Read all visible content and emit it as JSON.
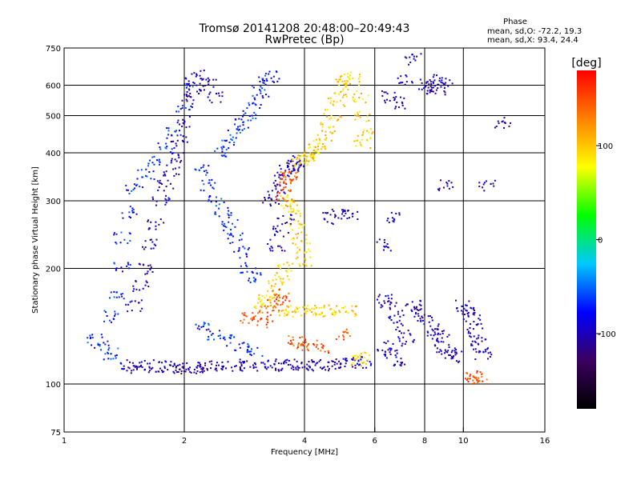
{
  "chart_data": {
    "type": "scatter",
    "title": "Tromsø 20141208 20:48:00–20:49:43",
    "subtitle": "RwPretec (Bp)",
    "xlabel": "Frequency [MHz]",
    "ylabel": "Stationary phase Virtual Height [km]",
    "x_scale": "log",
    "y_scale": "log",
    "xlim": [
      1,
      16
    ],
    "ylim": [
      75,
      750
    ],
    "x_ticks": [
      1,
      2,
      4,
      6,
      8,
      10,
      16
    ],
    "y_ticks": [
      75,
      100,
      200,
      300,
      400,
      500,
      600,
      750
    ],
    "x_gridlines": [
      2,
      4,
      6,
      8,
      10
    ],
    "y_gridlines": [
      100,
      200,
      300,
      400,
      500,
      600
    ],
    "grid": true,
    "stats": {
      "heading": "Phase",
      "line_O": "mean, sd,O: -72.2, 19.3",
      "line_X": "mean, sd,X:  93.4, 24.4"
    },
    "colorbar": {
      "label": "[deg]",
      "range": [
        -180,
        180
      ],
      "ticks": [
        100,
        0,
        -100
      ],
      "colormap": "rainbow",
      "colors": [
        "#000000",
        "#3c0060",
        "#0000ff",
        "#00c8ff",
        "#00ff00",
        "#ffff00",
        "#ff8000",
        "#ff0000"
      ]
    },
    "series": [
      {
        "trace": "F-region O-mode trace (blue)",
        "phase_deg": -100,
        "points": [
          [
            1.45,
            110
          ],
          [
            1.5,
            112
          ],
          [
            1.6,
            112
          ],
          [
            1.7,
            111
          ],
          [
            1.8,
            111
          ],
          [
            1.9,
            110
          ],
          [
            2.0,
            110
          ],
          [
            2.1,
            110
          ],
          [
            2.2,
            110
          ],
          [
            2.3,
            111
          ],
          [
            2.5,
            111
          ],
          [
            2.7,
            112
          ],
          [
            2.9,
            112
          ],
          [
            3.1,
            112
          ],
          [
            3.3,
            112
          ],
          [
            3.5,
            112
          ],
          [
            3.7,
            112
          ],
          [
            3.9,
            112
          ],
          [
            4.1,
            112
          ],
          [
            4.4,
            112
          ],
          [
            4.7,
            113
          ],
          [
            5.0,
            113
          ],
          [
            5.3,
            113
          ],
          [
            5.6,
            114
          ],
          [
            1.5,
            160
          ],
          [
            1.55,
            180
          ],
          [
            1.6,
            200
          ],
          [
            1.65,
            230
          ],
          [
            1.7,
            260
          ],
          [
            1.75,
            300
          ],
          [
            1.8,
            330
          ],
          [
            1.85,
            360
          ],
          [
            1.9,
            390
          ],
          [
            1.95,
            430
          ],
          [
            2.0,
            480
          ],
          [
            2.05,
            560
          ],
          [
            2.1,
            620
          ],
          [
            2.2,
            640
          ],
          [
            2.3,
            600
          ],
          [
            2.4,
            560
          ],
          [
            3.3,
            300
          ],
          [
            3.4,
            320
          ],
          [
            3.5,
            340
          ],
          [
            3.6,
            360
          ],
          [
            3.7,
            370
          ],
          [
            3.8,
            375
          ],
          [
            3.9,
            380
          ],
          [
            3.6,
            270
          ],
          [
            3.5,
            250
          ],
          [
            3.4,
            230
          ]
        ]
      },
      {
        "trace": "Diffuse echoes (cyan-blue)",
        "phase_deg": -70,
        "points": [
          [
            1.3,
            150
          ],
          [
            1.35,
            170
          ],
          [
            1.4,
            200
          ],
          [
            1.4,
            240
          ],
          [
            1.45,
            280
          ],
          [
            1.5,
            320
          ],
          [
            1.6,
            350
          ],
          [
            1.7,
            380
          ],
          [
            1.8,
            410
          ],
          [
            1.9,
            450
          ],
          [
            2.0,
            520
          ],
          [
            2.1,
            580
          ],
          [
            2.2,
            360
          ],
          [
            2.3,
            330
          ],
          [
            2.4,
            300
          ],
          [
            2.5,
            280
          ],
          [
            2.6,
            260
          ],
          [
            2.7,
            240
          ],
          [
            2.8,
            220
          ],
          [
            2.9,
            200
          ],
          [
            3.0,
            190
          ],
          [
            2.5,
            400
          ],
          [
            2.6,
            420
          ],
          [
            2.7,
            450
          ],
          [
            2.8,
            480
          ],
          [
            2.9,
            500
          ],
          [
            3.0,
            540
          ],
          [
            3.1,
            580
          ],
          [
            3.2,
            610
          ],
          [
            3.3,
            630
          ],
          [
            2.2,
            140
          ],
          [
            2.4,
            135
          ],
          [
            2.6,
            130
          ],
          [
            2.8,
            125
          ],
          [
            3.0,
            122
          ],
          [
            1.2,
            130
          ],
          [
            1.25,
            125
          ],
          [
            1.3,
            120
          ]
        ]
      },
      {
        "trace": "X-mode trace (yellow-orange)",
        "phase_deg": 95,
        "points": [
          [
            3.9,
            380
          ],
          [
            4.0,
            385
          ],
          [
            4.1,
            390
          ],
          [
            4.2,
            400
          ],
          [
            4.3,
            410
          ],
          [
            4.4,
            420
          ],
          [
            4.5,
            440
          ],
          [
            4.6,
            470
          ],
          [
            4.7,
            500
          ],
          [
            4.8,
            540
          ],
          [
            4.9,
            580
          ],
          [
            5.0,
            610
          ],
          [
            5.1,
            630
          ],
          [
            5.3,
            620
          ],
          [
            5.5,
            560
          ],
          [
            5.6,
            500
          ],
          [
            5.7,
            450
          ],
          [
            5.6,
            420
          ],
          [
            3.6,
            300
          ],
          [
            3.7,
            290
          ],
          [
            3.8,
            280
          ],
          [
            3.85,
            260
          ],
          [
            3.9,
            240
          ],
          [
            3.95,
            225
          ],
          [
            4.0,
            210
          ],
          [
            3.6,
            200
          ],
          [
            3.5,
            190
          ],
          [
            3.4,
            180
          ],
          [
            3.3,
            170
          ],
          [
            3.2,
            165
          ],
          [
            3.1,
            160
          ],
          [
            3.5,
            155
          ],
          [
            3.7,
            155
          ],
          [
            3.9,
            155
          ],
          [
            4.1,
            155
          ],
          [
            4.3,
            155
          ],
          [
            4.6,
            155
          ],
          [
            4.9,
            155
          ],
          [
            5.2,
            155
          ],
          [
            5.5,
            115
          ],
          [
            5.6,
            118
          ]
        ]
      },
      {
        "trace": "Orange/red echoes",
        "phase_deg": 150,
        "points": [
          [
            3.6,
            330
          ],
          [
            3.65,
            345
          ],
          [
            3.7,
            350
          ],
          [
            3.55,
            310
          ],
          [
            3.5,
            170
          ],
          [
            3.45,
            165
          ],
          [
            3.3,
            160
          ],
          [
            3.2,
            150
          ],
          [
            3.1,
            145
          ],
          [
            2.9,
            148
          ],
          [
            3.8,
            130
          ],
          [
            3.9,
            128
          ],
          [
            4.1,
            126
          ],
          [
            4.4,
            124
          ],
          [
            5.0,
            135
          ],
          [
            10.5,
            105
          ],
          [
            10.7,
            104
          ],
          [
            11.0,
            103
          ]
        ]
      },
      {
        "trace": "High-frequency sparse echoes",
        "phase_deg": -100,
        "points": [
          [
            6.3,
            165
          ],
          [
            6.5,
            160
          ],
          [
            6.8,
            150
          ],
          [
            7.0,
            140
          ],
          [
            7.2,
            130
          ],
          [
            6.4,
            125
          ],
          [
            6.6,
            120
          ],
          [
            6.9,
            115
          ],
          [
            7.5,
            160
          ],
          [
            7.8,
            155
          ],
          [
            8.0,
            150
          ],
          [
            8.3,
            140
          ],
          [
            8.5,
            135
          ],
          [
            8.8,
            130
          ],
          [
            9.0,
            125
          ],
          [
            9.2,
            120
          ],
          [
            9.5,
            118
          ],
          [
            10.0,
            160
          ],
          [
            10.3,
            155
          ],
          [
            10.5,
            150
          ],
          [
            10.7,
            140
          ],
          [
            10.9,
            130
          ],
          [
            11.0,
            125
          ],
          [
            11.2,
            120
          ],
          [
            8.0,
            600
          ],
          [
            8.3,
            590
          ],
          [
            8.6,
            580
          ],
          [
            9.0,
            610
          ],
          [
            6.5,
            560
          ],
          [
            6.8,
            540
          ],
          [
            7.2,
            620
          ],
          [
            6.6,
            270
          ],
          [
            6.3,
            230
          ],
          [
            4.6,
            270
          ],
          [
            4.9,
            275
          ],
          [
            5.2,
            275
          ],
          [
            11.5,
            330
          ],
          [
            12.5,
            480
          ],
          [
            9.0,
            330
          ],
          [
            7.5,
            700
          ],
          [
            8.6,
            620
          ]
        ]
      }
    ]
  }
}
